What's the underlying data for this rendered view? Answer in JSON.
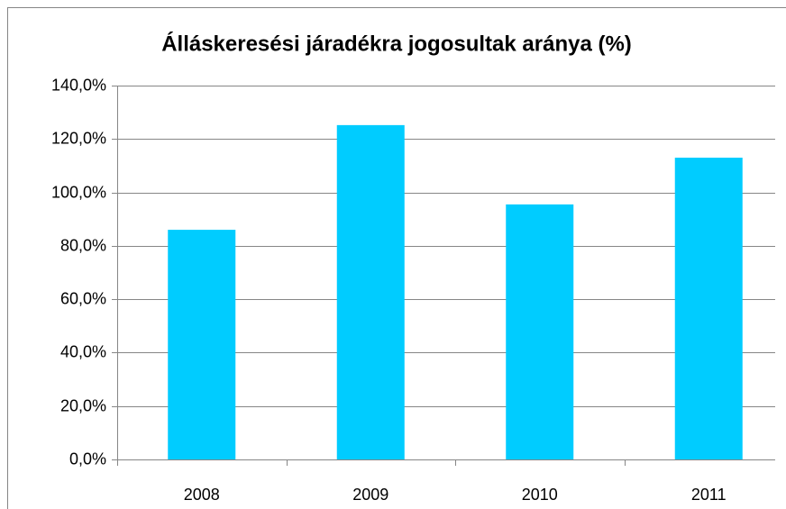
{
  "chart_data": {
    "type": "bar",
    "title": "Álláskeresési járadékra jogosultak aránya (%)",
    "categories": [
      "2008",
      "2009",
      "2010",
      "2011"
    ],
    "values": [
      86,
      125.2,
      95.5,
      113
    ],
    "color": "#00ccff",
    "ylim": [
      0,
      140
    ],
    "yticks": [
      {
        "value": 0,
        "label": "0,0%"
      },
      {
        "value": 20,
        "label": "20,0%"
      },
      {
        "value": 40,
        "label": "40,0%"
      },
      {
        "value": 60,
        "label": "60,0%"
      },
      {
        "value": 80,
        "label": "80,0%"
      },
      {
        "value": 100,
        "label": "100,0%"
      },
      {
        "value": 120,
        "label": "120,0%"
      },
      {
        "value": 140,
        "label": "140,0%"
      }
    ],
    "grid": true
  }
}
